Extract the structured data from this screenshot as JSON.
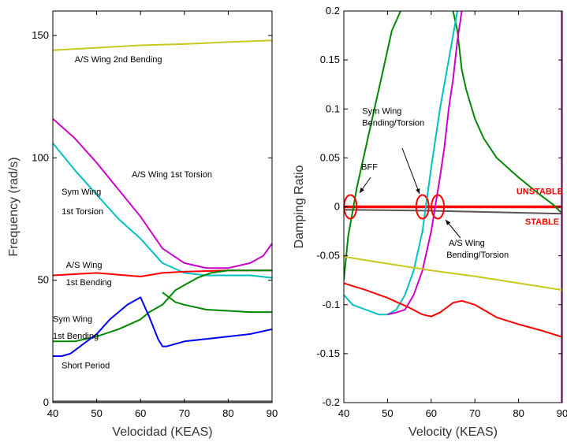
{
  "chart_data": [
    {
      "type": "line",
      "xlabel": "Velocidad (KEAS)",
      "ylabel": "Frequency (rad/s)",
      "xlim": [
        40,
        90
      ],
      "ylim": [
        0,
        160
      ],
      "xticks": [
        40,
        50,
        60,
        70,
        80,
        90
      ],
      "yticks": [
        0,
        50,
        100,
        150
      ],
      "grid": false,
      "series": [
        {
          "key": "aswing2b",
          "color": "#c8c81e",
          "x": [
            40,
            50,
            60,
            70,
            80,
            90
          ],
          "y": [
            144,
            145,
            146,
            146.5,
            147.3,
            148
          ]
        },
        {
          "key": "aswing1t",
          "color": "#cc00cc",
          "x": [
            40,
            45,
            50,
            55,
            60,
            65,
            70,
            75,
            80,
            85,
            88,
            90
          ],
          "y": [
            116,
            108,
            98,
            87,
            76,
            63,
            57,
            55,
            55,
            57,
            60,
            65
          ]
        },
        {
          "key": "symwing1t",
          "color": "#00c0c0",
          "x": [
            40,
            45,
            50,
            55,
            60,
            65,
            70,
            75,
            80,
            85,
            90
          ],
          "y": [
            106,
            95,
            85,
            75,
            67,
            57,
            53,
            52,
            52,
            52,
            51
          ]
        },
        {
          "key": "aswing1b",
          "color": "#ff0000",
          "x": [
            40,
            50,
            60,
            65,
            70,
            80,
            90
          ],
          "y": [
            52,
            53,
            51.5,
            53,
            53.5,
            54,
            54
          ]
        },
        {
          "key": "symwing1b",
          "color": "#008800",
          "x": [
            40,
            45,
            50,
            55,
            60,
            62,
            65,
            68,
            70,
            73,
            76,
            80,
            85,
            90
          ],
          "y": [
            25,
            25,
            27,
            30,
            34,
            37,
            40,
            46,
            48,
            51,
            53,
            54,
            54,
            54
          ]
        },
        {
          "key": "symwing1b_low",
          "color": "#008800",
          "x": [
            65,
            68,
            70,
            75,
            80,
            85,
            90
          ],
          "y": [
            45,
            41,
            40,
            38,
            37.5,
            37,
            37
          ]
        },
        {
          "key": "shortperiod",
          "color": "#0000ff",
          "x": [
            40,
            42,
            44,
            47,
            50,
            53,
            55,
            57,
            60,
            62,
            64,
            65,
            66,
            70,
            75,
            80,
            85,
            90
          ],
          "y": [
            19,
            19,
            20,
            24,
            28,
            34,
            37,
            40,
            43,
            35,
            26,
            23,
            23,
            25,
            26,
            27,
            28,
            30
          ]
        },
        {
          "key": "zero",
          "color": "#555555",
          "x": [
            40,
            90
          ],
          "y": [
            0.5,
            0.5
          ]
        }
      ],
      "annotations": [
        {
          "text": "A/S Wing 2nd Bending",
          "x": 45,
          "y": 139
        },
        {
          "text": "A/S Wing 1st Torsion",
          "x": 58,
          "y": 92
        },
        {
          "text": "Sym Wing",
          "x": 42,
          "y": 85
        },
        {
          "text": "1st Torsion",
          "x": 42,
          "y": 77
        },
        {
          "text": "A/S Wing",
          "x": 43,
          "y": 55
        },
        {
          "text": "1st Bending",
          "x": 43,
          "y": 48
        },
        {
          "text": "Sym Wing",
          "x": 40,
          "y": 33
        },
        {
          "text": "1st Bending",
          "x": 40,
          "y": 26
        },
        {
          "text": "Short Period",
          "x": 42,
          "y": 14
        }
      ]
    },
    {
      "type": "line",
      "xlabel": "Velocity (KEAS)",
      "ylabel": "Damping Ratio",
      "xlim": [
        40,
        90
      ],
      "ylim": [
        -0.2,
        0.2
      ],
      "xticks": [
        40,
        50,
        60,
        70,
        80,
        90
      ],
      "yticks": [
        -0.2,
        -0.15,
        -0.1,
        -0.05,
        0,
        0.05,
        0.1,
        0.15,
        0.2
      ],
      "grid": false,
      "series": [
        {
          "key": "unstable_line",
          "color": "#ff0000",
          "x": [
            40,
            90
          ],
          "y": [
            0,
            0
          ]
        },
        {
          "key": "dark",
          "color": "#555555",
          "x": [
            40,
            60,
            80,
            90
          ],
          "y": [
            -0.003,
            -0.004,
            -0.006,
            -0.007
          ]
        },
        {
          "key": "green",
          "color": "#008800",
          "x": [
            40,
            41,
            42,
            43,
            45,
            47,
            49,
            50,
            51,
            52,
            53
          ],
          "y": [
            -0.075,
            -0.03,
            -0.005,
            0.02,
            0.06,
            0.1,
            0.14,
            0.16,
            0.18,
            0.19,
            0.2
          ]
        },
        {
          "key": "green2",
          "color": "#008800",
          "x": [
            65,
            66,
            67,
            68,
            70,
            72,
            75,
            80,
            85,
            88,
            90
          ],
          "y": [
            0.2,
            0.18,
            0.14,
            0.12,
            0.09,
            0.07,
            0.05,
            0.03,
            0.012,
            0.002,
            -0.007
          ]
        },
        {
          "key": "cyan",
          "color": "#00c0c0",
          "x": [
            40,
            42,
            45,
            48,
            50,
            52,
            54,
            56,
            58,
            60,
            62,
            64,
            66
          ],
          "y": [
            -0.09,
            -0.1,
            -0.105,
            -0.11,
            -0.11,
            -0.105,
            -0.09,
            -0.065,
            -0.025,
            0.04,
            0.1,
            0.15,
            0.2
          ]
        },
        {
          "key": "magenta",
          "color": "#cc00cc",
          "x": [
            50,
            52,
            54,
            56,
            58,
            60,
            62,
            63,
            64,
            65,
            66,
            67
          ],
          "y": [
            -0.11,
            -0.108,
            -0.105,
            -0.09,
            -0.065,
            -0.025,
            0.03,
            0.06,
            0.1,
            0.13,
            0.17,
            0.2
          ]
        },
        {
          "key": "magenta_vert",
          "color": "#cc00cc",
          "x": [
            90,
            90
          ],
          "y": [
            -0.2,
            0.2
          ]
        },
        {
          "key": "olive",
          "color": "#c8c81e",
          "x": [
            40,
            50,
            60,
            70,
            80,
            90
          ],
          "y": [
            -0.051,
            -0.058,
            -0.065,
            -0.071,
            -0.078,
            -0.085
          ]
        },
        {
          "key": "red_low",
          "color": "#ff0000",
          "x": [
            40,
            45,
            50,
            55,
            58,
            60,
            62,
            65,
            67,
            70,
            75,
            80,
            85,
            90
          ],
          "y": [
            -0.078,
            -0.085,
            -0.093,
            -0.103,
            -0.11,
            -0.112,
            -0.108,
            -0.098,
            -0.096,
            -0.1,
            -0.113,
            -0.12,
            -0.126,
            -0.133
          ]
        }
      ],
      "annotations": [
        {
          "text": "BFF",
          "x": 44,
          "y": 0.038
        },
        {
          "text": "Sym Wing",
          "x": 44.2,
          "y": 0.095
        },
        {
          "text": "Bending/Torsion",
          "x": 44.2,
          "y": 0.083
        },
        {
          "text": "A/S Wing",
          "x": 64,
          "y": -0.04
        },
        {
          "text": "Bending/Torsion",
          "x": 63.5,
          "y": -0.052
        },
        {
          "text": "UNSTABLE",
          "x": 79.5,
          "y": 0.013,
          "color": "red"
        },
        {
          "text": "STABLE",
          "x": 81.5,
          "y": -0.018,
          "color": "red"
        }
      ],
      "markers": [
        {
          "shape": "ellipse",
          "x": 41.5,
          "y": 0
        },
        {
          "shape": "ellipse",
          "x": 58,
          "y": 0
        },
        {
          "shape": "ellipse",
          "x": 61.5,
          "y": 0
        }
      ]
    }
  ]
}
